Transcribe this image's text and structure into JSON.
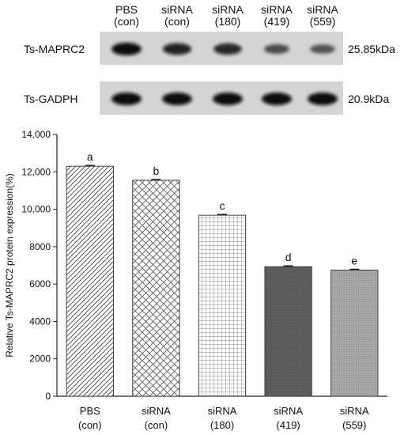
{
  "blot": {
    "lanes": [
      {
        "line1": "PBS",
        "line2": "(con)"
      },
      {
        "line1": "siRNA",
        "line2": "(con)"
      },
      {
        "line1": "siRNA",
        "line2": "(180)"
      },
      {
        "line1": "siRNA",
        "line2": "(419)"
      },
      {
        "line1": "siRNA",
        "line2": "(559)"
      }
    ],
    "rows": [
      {
        "name": "Ts-MAPRC2",
        "size": "25.85kDa",
        "intensity": [
          1.0,
          0.85,
          0.8,
          0.5,
          0.45
        ]
      },
      {
        "name": "Ts-GADPH",
        "size": "20.9kDa",
        "intensity": [
          1.0,
          1.0,
          1.0,
          1.0,
          1.0
        ]
      }
    ]
  },
  "chart_data": {
    "type": "bar",
    "categories": [
      {
        "line1": "PBS",
        "line2": "(con)"
      },
      {
        "line1": "siRNA",
        "line2": "(con)"
      },
      {
        "line1": "siRNA",
        "line2": "(180)"
      },
      {
        "line1": "siRNA",
        "line2": "(419)"
      },
      {
        "line1": "siRNA",
        "line2": "(559)"
      }
    ],
    "values": [
      12300,
      11550,
      9680,
      6930,
      6750
    ],
    "errors": [
      40,
      40,
      40,
      40,
      40
    ],
    "significance_labels": [
      "a",
      "b",
      "c",
      "d",
      "e"
    ],
    "bar_patterns": [
      "diagonal-hatch",
      "crosshatch-diagonal",
      "grid",
      "dark-fill",
      "gray-fill"
    ],
    "ylabel": "Relative Ts-MAPRC2 protein expression(%)",
    "xlabel": "",
    "ylim": [
      0,
      14000
    ],
    "yticks": [
      "0",
      "2000",
      "4000",
      "6000",
      "8000",
      "10,000",
      "12,000",
      "14,000"
    ],
    "ytick_values": [
      0,
      2000,
      4000,
      6000,
      8000,
      10000,
      12000,
      14000
    ],
    "grid": false,
    "colors": {
      "dark": "#5a5a5a",
      "gray": "#a8a8a8",
      "line": "#444444"
    }
  }
}
